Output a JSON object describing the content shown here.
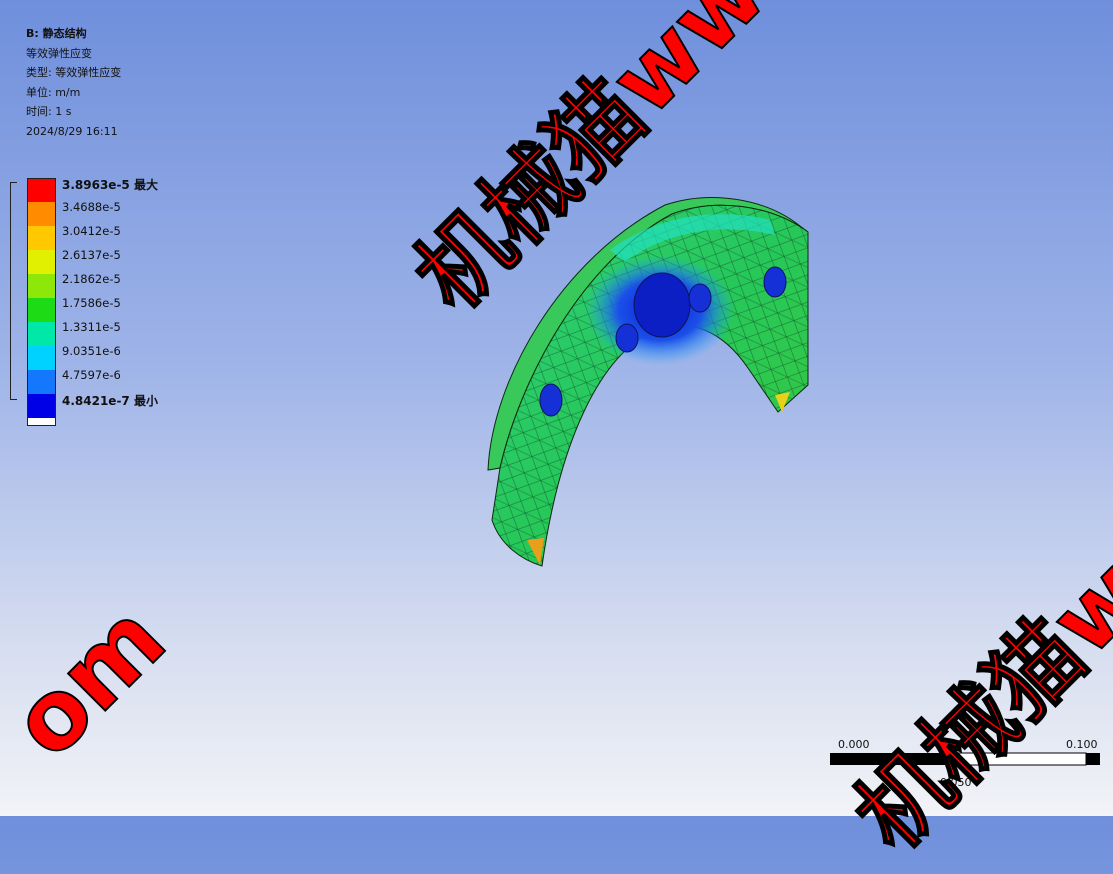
{
  "info": {
    "title": "B: 静态结构",
    "result": "等效弹性应变",
    "type": "类型: 等效弹性应变",
    "unit": "单位: m/m",
    "time": "时间: 1 s",
    "date": "2024/8/29 16:11"
  },
  "legend": [
    {
      "label": "3.8963e-5 最大",
      "color": "#ff0000",
      "bold": true
    },
    {
      "label": "3.4688e-5",
      "color": "#ff8c00",
      "bold": false
    },
    {
      "label": "3.0412e-5",
      "color": "#ffc800",
      "bold": false
    },
    {
      "label": "2.6137e-5",
      "color": "#e0f000",
      "bold": false
    },
    {
      "label": "2.1862e-5",
      "color": "#8de80a",
      "bold": false
    },
    {
      "label": "1.7586e-5",
      "color": "#1ddc16",
      "bold": false
    },
    {
      "label": "1.3311e-5",
      "color": "#00e8a8",
      "bold": false
    },
    {
      "label": "9.0351e-6",
      "color": "#00d2ff",
      "bold": false
    },
    {
      "label": "4.7597e-6",
      "color": "#1478ff",
      "bold": false
    },
    {
      "label": "4.8421e-7 最小",
      "color": "#0000e6",
      "bold": true
    }
  ],
  "scale": {
    "left": "0.000",
    "middle": "0.050",
    "right": "0.100"
  },
  "watermarks": [
    "机械猫www",
    "机械猫w",
    "om"
  ]
}
